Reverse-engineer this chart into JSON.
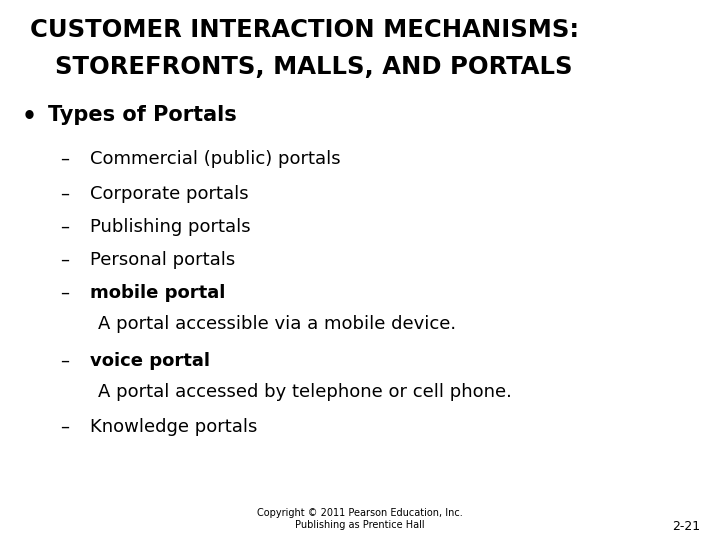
{
  "title_line1": "CUSTOMER INTERACTION MECHANISMS:",
  "title_line2": "STOREFRONTS, MALLS, AND PORTALS",
  "bullet_main": "Types of Portals",
  "sub_items": [
    {
      "dash": "–",
      "bold_text": "",
      "normal_text": "Commercial (public) portals"
    },
    {
      "dash": "–",
      "bold_text": "",
      "normal_text": "Corporate portals"
    },
    {
      "dash": "–",
      "bold_text": "",
      "normal_text": "Publishing portals"
    },
    {
      "dash": "–",
      "bold_text": "",
      "normal_text": "Personal portals"
    },
    {
      "dash": "–",
      "bold_text": "mobile portal",
      "normal_text": ""
    },
    {
      "dash": "",
      "bold_text": "",
      "normal_text": "A portal accessible via a mobile device."
    },
    {
      "dash": "–",
      "bold_text": "voice portal",
      "normal_text": ""
    },
    {
      "dash": "",
      "bold_text": "",
      "normal_text": "A portal accessed by telephone or cell phone."
    },
    {
      "dash": "–",
      "bold_text": "",
      "normal_text": "Knowledge portals"
    }
  ],
  "footer_line1": "Copyright © 2011 Pearson Education, Inc.",
  "footer_line2": "Publishing as Prentice Hall",
  "slide_number": "2-21",
  "bg_color": "#ffffff",
  "text_color": "#000000",
  "title_fontsize": 17.5,
  "bullet_fontsize": 15,
  "sub_fontsize": 13,
  "footer_fontsize": 7,
  "slide_num_fontsize": 9
}
